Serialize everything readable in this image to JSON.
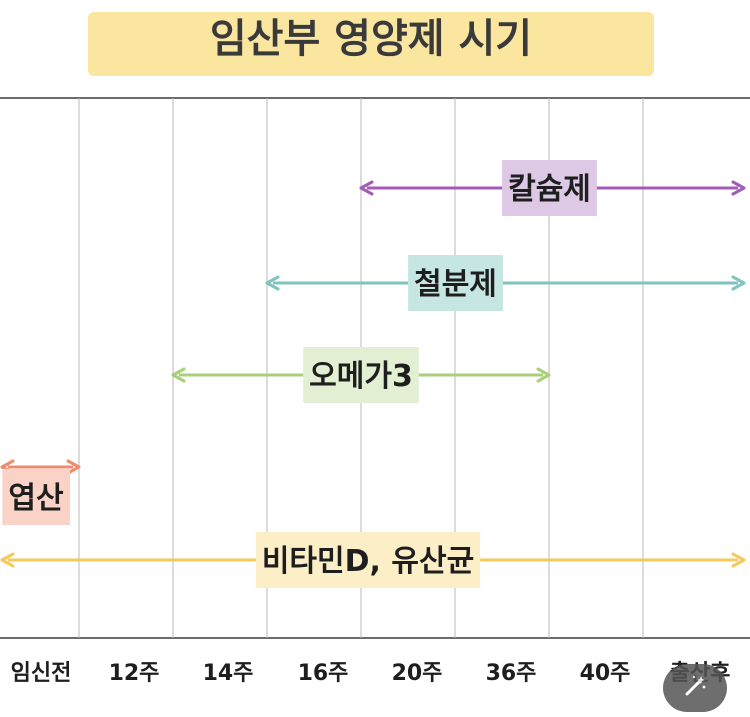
{
  "chart_data": {
    "type": "timeline",
    "title": "임산부 영양제 시기",
    "categories": [
      "임신전",
      "12주",
      "14주",
      "16주",
      "20주",
      "36주",
      "40주",
      "출산후"
    ],
    "series": [
      {
        "name": "칼슘제",
        "start": 3.5,
        "end": 8,
        "color": "#a45bb8",
        "label_bg": "#ddc8e6"
      },
      {
        "name": "철분제",
        "start": 2.5,
        "end": 8,
        "color": "#7fc4c0",
        "label_bg": "#c5e6e3"
      },
      {
        "name": "오메가3",
        "start": 1.5,
        "end": 5.5,
        "color": "#a8cf7a",
        "label_bg": "#e2efd3"
      },
      {
        "name": "엽산",
        "start": -0.5,
        "end": 0.5,
        "color": "#ef8c6e",
        "label_bg": "#fad2c6"
      },
      {
        "name": "비타민D, 유산균",
        "start": -0.5,
        "end": 8,
        "color": "#f6c95b",
        "label_bg": "#fcefc7"
      }
    ],
    "title_highlight_color": "#fbe6a0"
  },
  "ui": {
    "edit_icon": "magic-wand-icon"
  }
}
